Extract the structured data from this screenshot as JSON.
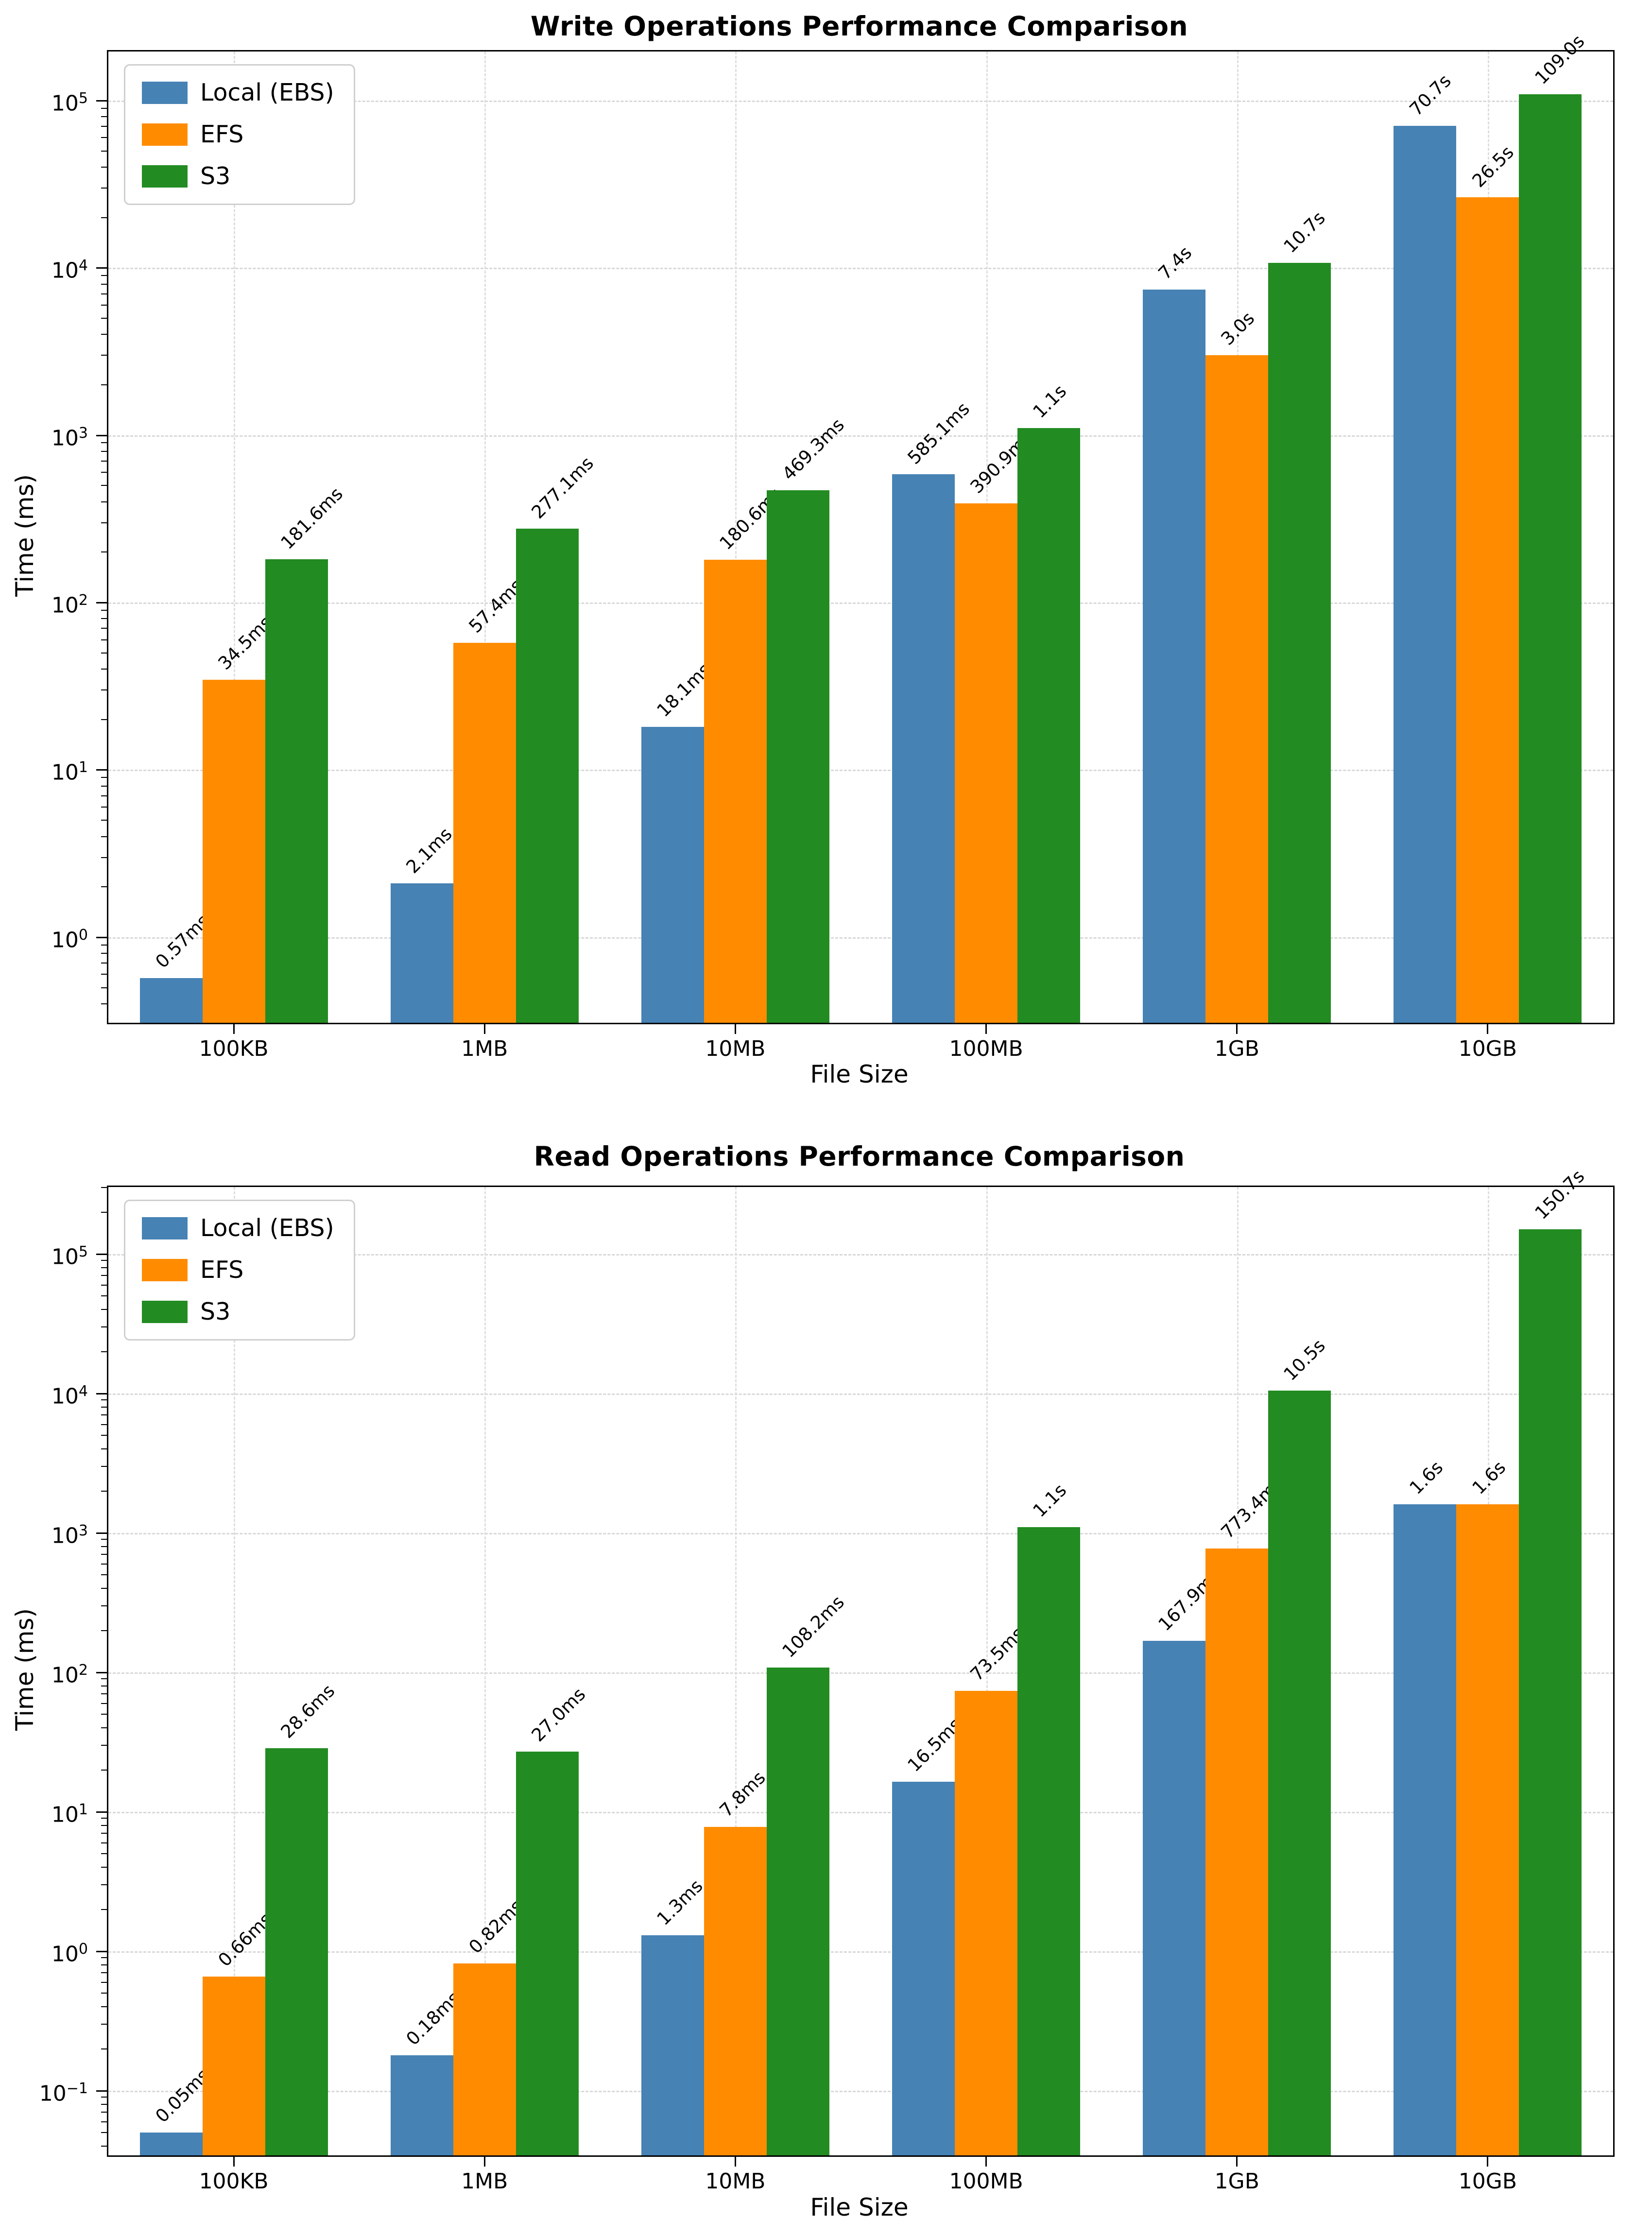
{
  "figure": {
    "background": "#ffffff",
    "spine_color": "#000000",
    "grid_color": "#d8d8d8",
    "legend_border_color": "#cfcfcf"
  },
  "series_colors": {
    "local": "#4682B4",
    "efs": "#FF8C00",
    "s3": "#228B22"
  },
  "chart_data": [
    {
      "type": "bar",
      "title": "Write Operations Performance Comparison",
      "xlabel": "File Size",
      "ylabel": "Time (ms)",
      "log_scale": true,
      "grid": "dashed",
      "legend_position": "upper left",
      "categories": [
        "100KB",
        "1MB",
        "10MB",
        "100MB",
        "1GB",
        "10GB"
      ],
      "y_tick_exponents": [
        5,
        4,
        3,
        2,
        1,
        0
      ],
      "ylim": [
        0.308,
        196400
      ],
      "series": [
        {
          "name": "Local (EBS)",
          "color_key": "local",
          "values": [
            0.57,
            2.1,
            18.1,
            585.1,
            7400,
            70700
          ],
          "labels": [
            "0.57ms",
            "2.1ms",
            "18.1ms",
            "585.1ms",
            "7.4s",
            "70.7s"
          ]
        },
        {
          "name": "EFS",
          "color_key": "efs",
          "values": [
            34.5,
            57.4,
            180.6,
            390.9,
            3000,
            26500
          ],
          "labels": [
            "34.5ms",
            "57.4ms",
            "180.6ms",
            "390.9ms",
            "3.0s",
            "26.5s"
          ]
        },
        {
          "name": "S3",
          "color_key": "s3",
          "values": [
            181.6,
            277.1,
            469.3,
            1100,
            10700,
            109000
          ],
          "labels": [
            "181.6ms",
            "277.1ms",
            "469.3ms",
            "1.1s",
            "10.7s",
            "109.0s"
          ]
        }
      ]
    },
    {
      "type": "bar",
      "title": "Read Operations Performance Comparison",
      "xlabel": "File Size",
      "ylabel": "Time (ms)",
      "log_scale": true,
      "grid": "dashed",
      "legend_position": "upper left",
      "categories": [
        "100KB",
        "1MB",
        "10MB",
        "100MB",
        "1GB",
        "10GB"
      ],
      "y_tick_exponents": [
        5,
        4,
        3,
        2,
        1,
        0,
        -1
      ],
      "ylim": [
        0.0344,
        302600
      ],
      "series": [
        {
          "name": "Local (EBS)",
          "color_key": "local",
          "values": [
            0.05,
            0.18,
            1.3,
            16.5,
            167.9,
            1600
          ],
          "labels": [
            "0.05ms",
            "0.18ms",
            "1.3ms",
            "16.5ms",
            "167.9ms",
            "1.6s"
          ]
        },
        {
          "name": "EFS",
          "color_key": "efs",
          "values": [
            0.66,
            0.82,
            7.8,
            73.5,
            773.4,
            1600
          ],
          "labels": [
            "0.66ms",
            "0.82ms",
            "7.8ms",
            "73.5ms",
            "773.4ms",
            "1.6s"
          ]
        },
        {
          "name": "S3",
          "color_key": "s3",
          "values": [
            28.6,
            27.0,
            108.2,
            1100,
            10500,
            150700
          ],
          "labels": [
            "28.6ms",
            "27.0ms",
            "108.2ms",
            "1.1s",
            "10.5s",
            "150.7s"
          ]
        }
      ]
    }
  ]
}
